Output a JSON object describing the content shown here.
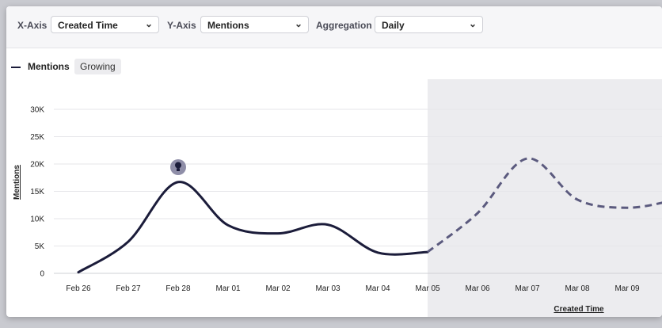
{
  "toolbar": {
    "x_axis_label": "X-Axis",
    "x_axis_value": "Created Time",
    "y_axis_label": "Y-Axis",
    "y_axis_value": "Mentions",
    "aggregation_label": "Aggregation",
    "aggregation_value": "Daily"
  },
  "legend": {
    "series_name": "Mentions",
    "trend_badge": "Growing"
  },
  "colors": {
    "line": "#1b1c3a",
    "forecast_line": "#5b5a7e",
    "forecast_region": "#ececef",
    "marker": "#8f8ea8"
  },
  "chart_data": {
    "type": "line",
    "xlabel": "Created Time",
    "ylabel": "Mentions",
    "ylim": [
      0,
      30000
    ],
    "y_ticks": [
      "0",
      "5K",
      "10K",
      "15K",
      "20K",
      "25K",
      "30K"
    ],
    "categories": [
      "Feb 26",
      "Feb 27",
      "Feb 28",
      "Mar 01",
      "Mar 02",
      "Mar 03",
      "Mar 04",
      "Mar 05",
      "Mar 06",
      "Mar 07",
      "Mar 08",
      "Mar 09"
    ],
    "series": [
      {
        "name": "Mentions",
        "style": "solid",
        "points": [
          {
            "x": "Feb 26",
            "y": 200
          },
          {
            "x": "Feb 27",
            "y": 5800
          },
          {
            "x": "Feb 28",
            "y": 16700
          },
          {
            "x": "Mar 01",
            "y": 8800
          },
          {
            "x": "Mar 02",
            "y": 7300
          },
          {
            "x": "Mar 03",
            "y": 8900
          },
          {
            "x": "Mar 04",
            "y": 3800
          },
          {
            "x": "Mar 05",
            "y": 3900
          }
        ]
      },
      {
        "name": "Mentions",
        "style": "dashed-forecast",
        "points": [
          {
            "x": "Mar 05",
            "y": 3900
          },
          {
            "x": "Mar 06",
            "y": 11000
          },
          {
            "x": "Mar 07",
            "y": 21000
          },
          {
            "x": "Mar 08",
            "y": 13500
          },
          {
            "x": "Mar 09",
            "y": 12000
          }
        ]
      }
    ],
    "forecast_start": "Mar 05",
    "marker_icon": "lightbulb-icon",
    "marker_at": "Feb 28",
    "grid": "horizontal"
  }
}
